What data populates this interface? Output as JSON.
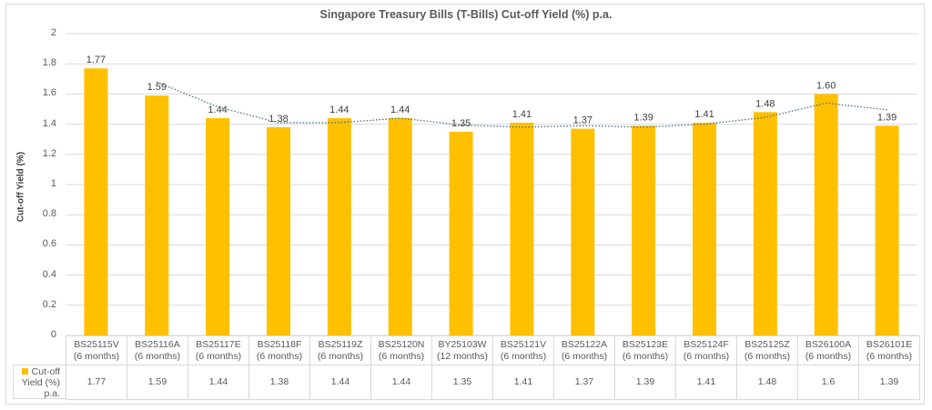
{
  "chart_data": {
    "type": "bar",
    "title": "Singapore Treasury Bills (T-Bills) Cut-off Yield (%) p.a.",
    "xlabel": "",
    "ylabel": "Cut-off Yield (%)",
    "ylim": [
      0,
      2
    ],
    "yticks": [
      "0",
      "0.2",
      "0.4",
      "0.6",
      "0.8",
      "1",
      "1.2",
      "1.4",
      "1.6",
      "1.8",
      "2"
    ],
    "grid": true,
    "categories": [
      [
        "BS25115V",
        "(6 months)"
      ],
      [
        "BS25116A",
        "(6 months)"
      ],
      [
        "BS25117E",
        "(6 months)"
      ],
      [
        "BS25118F",
        "(6 months)"
      ],
      [
        "BS25119Z",
        "(6 months)"
      ],
      [
        "BS25120N",
        "(6 months)"
      ],
      [
        "BY25103W",
        "(12 months)"
      ],
      [
        "BS25121V",
        "(6 months)"
      ],
      [
        "BS25122A",
        "(6 months)"
      ],
      [
        "BS25123E",
        "(6 months)"
      ],
      [
        "BS25124F",
        "(6 months)"
      ],
      [
        "BS25125Z",
        "(6 months)"
      ],
      [
        "BS26100A",
        "(6 months)"
      ],
      [
        "BS26101E",
        "(6 months)"
      ]
    ],
    "series": [
      {
        "name": "Cut-off Yield (%) p.a.",
        "color": "#FFC000",
        "values": [
          1.77,
          1.59,
          1.44,
          1.38,
          1.44,
          1.44,
          1.35,
          1.41,
          1.37,
          1.39,
          1.41,
          1.48,
          1.6,
          1.39
        ],
        "data_labels": [
          "1.77",
          "1.59",
          "1.44",
          "1.38",
          "1.44",
          "1.44",
          "1.35",
          "1.41",
          "1.37",
          "1.39",
          "1.41",
          "1.48",
          "1.60",
          "1.39"
        ],
        "table_values": [
          "1.77",
          "1.59",
          "1.44",
          "1.38",
          "1.44",
          "1.44",
          "1.35",
          "1.41",
          "1.37",
          "1.39",
          "1.41",
          "1.48",
          "1.6",
          "1.39"
        ]
      }
    ],
    "trendline": {
      "type": "2-period moving average",
      "style": "dotted",
      "color": "#4a6f8a"
    },
    "legend": {
      "label_lines": [
        "Cut-off",
        "Yield (%)",
        "p.a."
      ],
      "position": "data-table"
    }
  }
}
